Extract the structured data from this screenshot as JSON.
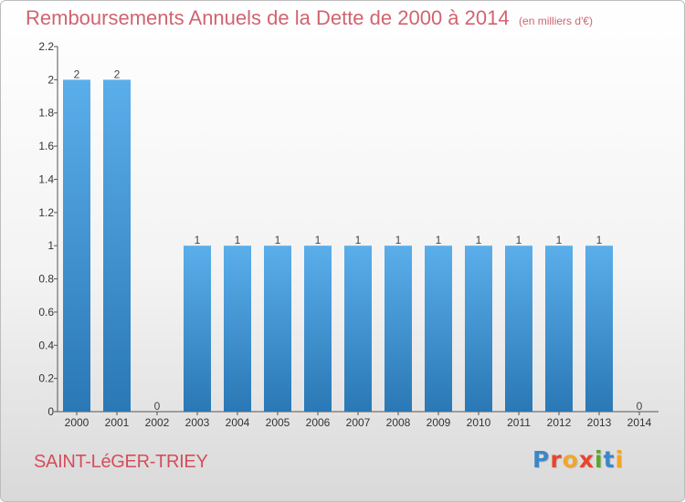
{
  "header": {
    "title": "Remboursements Annuels de la Dette de 2000 à 2014",
    "unit": "(en milliers d'€)"
  },
  "footer": {
    "commune": "SAINT-LéGER-TRIEY",
    "logo_text": "Proxiti"
  },
  "colors": {
    "title": "#d06470",
    "bar_top": "#5aaeea",
    "bar_bottom": "#2a78b5",
    "logo": [
      "#3b87c8",
      "#e8452f",
      "#f2a629",
      "#e8452f",
      "#5aa62b",
      "#3b87c8",
      "#f2a629"
    ]
  },
  "chart_data": {
    "type": "bar",
    "categories": [
      "2000",
      "2001",
      "2002",
      "2003",
      "2004",
      "2005",
      "2006",
      "2007",
      "2008",
      "2009",
      "2010",
      "2011",
      "2012",
      "2013",
      "2014"
    ],
    "values": [
      2,
      2,
      0,
      1,
      1,
      1,
      1,
      1,
      1,
      1,
      1,
      1,
      1,
      1,
      0
    ],
    "data_labels": [
      "2",
      "2",
      "0",
      "1",
      "1",
      "1",
      "1",
      "1",
      "1",
      "1",
      "1",
      "1",
      "1",
      "1",
      "0"
    ],
    "yticks": [
      0,
      0.2,
      0.4,
      0.6,
      0.8,
      1,
      1.2,
      1.4,
      1.6,
      1.8,
      2,
      2.2
    ],
    "ytick_labels": [
      "0",
      "0.2",
      "0.4",
      "0.6",
      "0.8",
      "1",
      "1.2",
      "1.4",
      "1.6",
      "1.8",
      "2",
      "2.2"
    ],
    "ylim": [
      0,
      2.2
    ],
    "grid": false,
    "legend": "none"
  }
}
